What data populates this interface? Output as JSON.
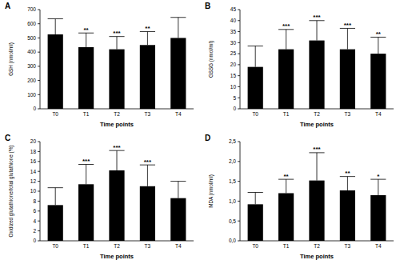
{
  "chart_data": [
    {
      "type": "bar",
      "title": "A",
      "x_label": "Time points",
      "y_label": "GSH (nmol/ml)",
      "categories": [
        "T0",
        "T1",
        "T2",
        "T3",
        "T4"
      ],
      "values": [
        525,
        435,
        420,
        450,
        500
      ],
      "errors": [
        110,
        100,
        90,
        95,
        145
      ],
      "annotations": [
        null,
        "**",
        "***",
        "**",
        null
      ],
      "color": "#000000",
      "ylim": [
        0,
        700
      ],
      "yticks": [
        0,
        100,
        200,
        300,
        400,
        500,
        600,
        700
      ]
    },
    {
      "type": "bar",
      "title": "B",
      "x_label": "Time points",
      "y_label": "GSSG (nmol/ml)",
      "categories": [
        "T0",
        "T1",
        "T2",
        "T3",
        "T4"
      ],
      "values": [
        19,
        27,
        31,
        27,
        25
      ],
      "errors": [
        9.5,
        9,
        9,
        9.5,
        7.5
      ],
      "annotations": [
        null,
        "***",
        "***",
        "***",
        "**"
      ],
      "color": "#000000",
      "ylim": [
        0,
        45
      ],
      "yticks": [
        0,
        5,
        10,
        15,
        20,
        25,
        30,
        35,
        40,
        45
      ]
    },
    {
      "type": "bar",
      "title": "C",
      "x_label": "Time points",
      "y_label": "Oxidized glutathione/total glutathione (%)",
      "categories": [
        "T0",
        "T1",
        "T2",
        "T3",
        "T4"
      ],
      "values": [
        7.2,
        11.4,
        14.2,
        11,
        8.6
      ],
      "errors": [
        3.5,
        4,
        4,
        4.3,
        3.4
      ],
      "annotations": [
        null,
        "***",
        "***",
        "***",
        null
      ],
      "color": "#000000",
      "ylim": [
        0,
        20
      ],
      "yticks": [
        0,
        2,
        4,
        6,
        8,
        10,
        12,
        14,
        16,
        18,
        20
      ]
    },
    {
      "type": "bar",
      "title": "D",
      "x_label": "Time points",
      "y_label": "MDA (nmol/ml)",
      "categories": [
        "T0",
        "T1",
        "T2",
        "T3",
        "T4"
      ],
      "values": [
        0.92,
        1.2,
        1.52,
        1.27,
        1.15
      ],
      "errors": [
        0.3,
        0.35,
        0.7,
        0.35,
        0.4
      ],
      "annotations": [
        null,
        "**",
        "***",
        "**",
        "*"
      ],
      "color": "#000000",
      "ylim": [
        0,
        2.5
      ],
      "yticks": [
        {
          "value": 0,
          "label": "0,0"
        },
        {
          "value": 0.5,
          "label": "0,5"
        },
        {
          "value": 1,
          "label": "1,0"
        },
        {
          "value": 1.5,
          "label": "1,5"
        },
        {
          "value": 2,
          "label": "2,0"
        },
        {
          "value": 2.5,
          "label": "2,5"
        }
      ]
    }
  ]
}
